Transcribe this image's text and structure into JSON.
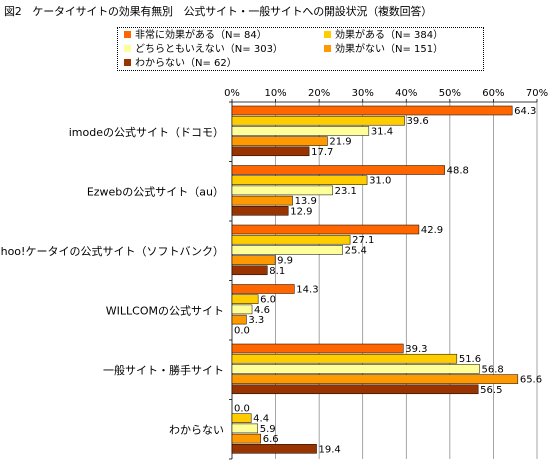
{
  "title": "図2　ケータイサイトの効果有無別　公式サイト・一般サイトへの開設状況（複数回答）",
  "chart_data": {
    "type": "bar",
    "orientation": "horizontal",
    "title": "図2　ケータイサイトの効果有無別　公式サイト・一般サイトへの開設状況（複数回答）",
    "categories": [
      "imodeの公式サイト（ドコモ）",
      "Ezwebの公式サイト（au）",
      "Yahoo!ケータイの公式サイト（ソフトバンク）",
      "WILLCOMの公式サイト",
      "一般サイト・勝手サイト",
      "わからない"
    ],
    "series": [
      {
        "name": "非常に効果がある（N= 84）",
        "color": "#ff6600",
        "values": [
          64.3,
          48.8,
          42.9,
          14.3,
          39.3,
          0.0
        ]
      },
      {
        "name": "効果がある（N= 384）",
        "color": "#ffcc00",
        "values": [
          39.6,
          31.0,
          27.1,
          6.0,
          51.6,
          4.4
        ]
      },
      {
        "name": "どちらともいえない（N= 303）",
        "color": "#ffff99",
        "values": [
          31.4,
          23.1,
          25.4,
          4.6,
          56.8,
          5.9
        ]
      },
      {
        "name": "効果がない（N= 151）",
        "color": "#ff9900",
        "values": [
          21.9,
          13.9,
          9.9,
          3.3,
          65.6,
          6.6
        ]
      },
      {
        "name": "わからない（N= 62）",
        "color": "#993300",
        "values": [
          17.7,
          12.9,
          8.1,
          0.0,
          56.5,
          19.4
        ]
      }
    ],
    "value_labels": [
      [
        "64.3",
        "48.8",
        "42.9",
        "14.3",
        "39.3",
        "0.0"
      ],
      [
        "39.6",
        "31.0",
        "27.1",
        "6.0",
        "51.6",
        "4.4"
      ],
      [
        "31.4",
        "23.1",
        "25.4",
        "4.6",
        "56.8",
        "5.9"
      ],
      [
        "21.9",
        "13.9",
        "9.9",
        "3.3",
        "65.6",
        "6.6"
      ],
      [
        "17.7",
        "12.9",
        "8.1",
        "0.0",
        "56.5",
        "19.4"
      ]
    ],
    "xlim": [
      0,
      70
    ],
    "xticks": [
      "0%",
      "10%",
      "20%",
      "30%",
      "40%",
      "50%",
      "60%",
      "70%"
    ],
    "grid": true,
    "legend_position": "top"
  }
}
